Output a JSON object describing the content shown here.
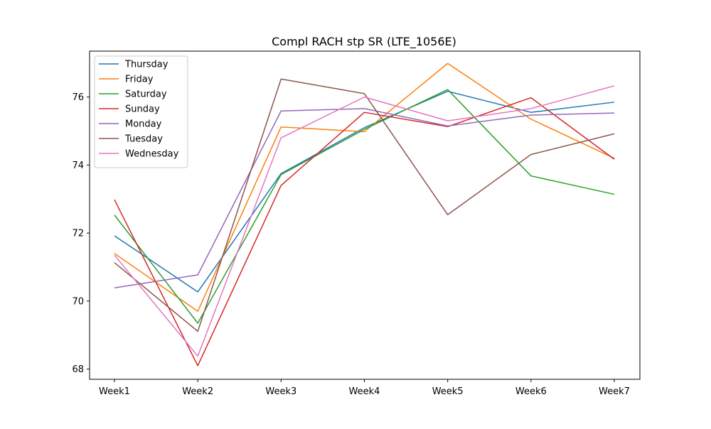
{
  "chart_data": {
    "type": "line",
    "title": "Compl RACH stp SR (LTE_1056E)",
    "xlabel": "",
    "ylabel": "",
    "categories": [
      "Week1",
      "Week2",
      "Week3",
      "Week4",
      "Week5",
      "Week6",
      "Week7"
    ],
    "ylim": [
      67.7,
      77.35
    ],
    "yticks": [
      68,
      70,
      72,
      74,
      76
    ],
    "ytick_labels": [
      "68",
      "70",
      "72",
      "74",
      "76"
    ],
    "grid": false,
    "legend_position": "upper-left",
    "series": [
      {
        "name": "Thursday",
        "color": "#1f77b4",
        "values": [
          71.92,
          70.27,
          73.75,
          75.1,
          76.17,
          75.55,
          75.85
        ]
      },
      {
        "name": "Friday",
        "color": "#ff7f0e",
        "values": [
          71.4,
          69.7,
          75.12,
          74.98,
          76.99,
          75.35,
          74.2
        ]
      },
      {
        "name": "Saturday",
        "color": "#2ca02c",
        "values": [
          72.53,
          69.35,
          73.72,
          75.05,
          76.22,
          73.68,
          73.14
        ]
      },
      {
        "name": "Sunday",
        "color": "#d62728",
        "values": [
          72.98,
          68.1,
          73.4,
          75.55,
          75.13,
          75.98,
          74.17
        ]
      },
      {
        "name": "Monday",
        "color": "#9467bd",
        "values": [
          70.39,
          70.77,
          75.59,
          75.66,
          75.15,
          75.47,
          75.53
        ]
      },
      {
        "name": "Tuesday",
        "color": "#8c564b",
        "values": [
          71.13,
          69.11,
          76.53,
          76.1,
          72.54,
          74.31,
          74.92
        ]
      },
      {
        "name": "Wednesday",
        "color": "#e377c2",
        "values": [
          71.35,
          68.38,
          74.8,
          76.0,
          75.3,
          75.66,
          76.33
        ]
      }
    ]
  }
}
